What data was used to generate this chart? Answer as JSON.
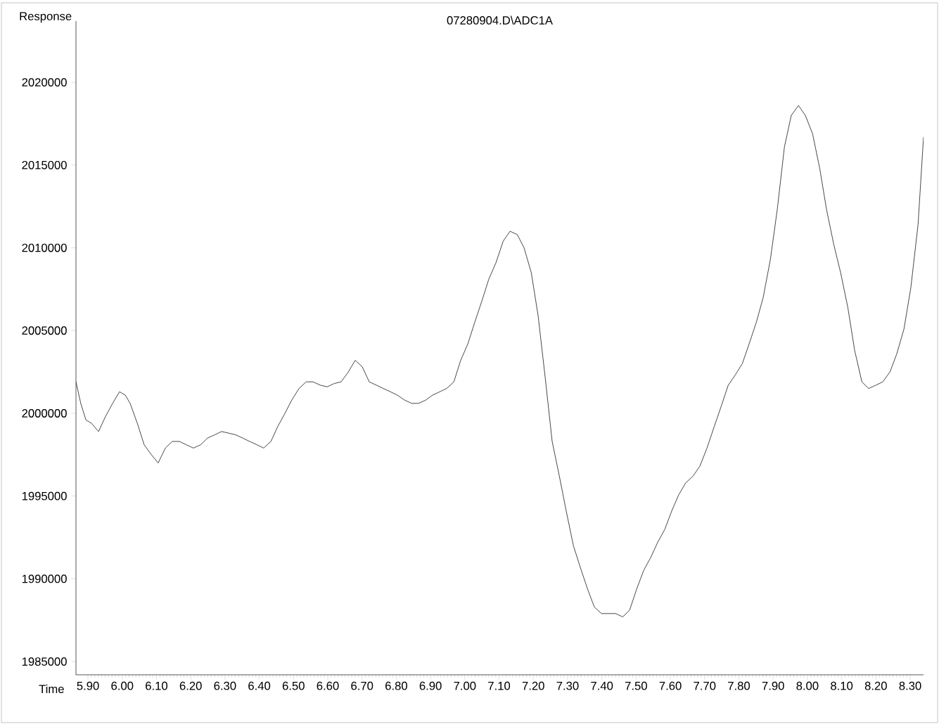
{
  "chart_data": {
    "type": "line",
    "title": "07280904.D\\ADC1A",
    "xlabel": "Time",
    "ylabel": "Response",
    "color": "#1a1a1a",
    "xlim": [
      5.865,
      8.339
    ],
    "ylim": [
      1984200,
      2023700
    ],
    "xticks": [
      {
        "value": 5.9,
        "label": "5.90"
      },
      {
        "value": 6.0,
        "label": "6.00"
      },
      {
        "value": 6.1,
        "label": "6.10"
      },
      {
        "value": 6.2,
        "label": "6.20"
      },
      {
        "value": 6.3,
        "label": "6.30"
      },
      {
        "value": 6.4,
        "label": "6.40"
      },
      {
        "value": 6.5,
        "label": "6.50"
      },
      {
        "value": 6.6,
        "label": "6.60"
      },
      {
        "value": 6.7,
        "label": "6.70"
      },
      {
        "value": 6.8,
        "label": "6.80"
      },
      {
        "value": 6.9,
        "label": "6.90"
      },
      {
        "value": 7.0,
        "label": "7.00"
      },
      {
        "value": 7.1,
        "label": "7.10"
      },
      {
        "value": 7.2,
        "label": "7.20"
      },
      {
        "value": 7.3,
        "label": "7.30"
      },
      {
        "value": 7.4,
        "label": "7.40"
      },
      {
        "value": 7.5,
        "label": "7.50"
      },
      {
        "value": 7.6,
        "label": "7.60"
      },
      {
        "value": 7.7,
        "label": "7.70"
      },
      {
        "value": 7.8,
        "label": "7.80"
      },
      {
        "value": 7.9,
        "label": "7.90"
      },
      {
        "value": 8.0,
        "label": "8.00"
      },
      {
        "value": 8.1,
        "label": "8.10"
      },
      {
        "value": 8.2,
        "label": "8.20"
      },
      {
        "value": 8.3,
        "label": "8.30"
      }
    ],
    "yticks": [
      1985000,
      1990000,
      1995000,
      2000000,
      2005000,
      2010000,
      2015000,
      2020000
    ],
    "x": [
      5.865,
      5.879,
      5.894,
      5.91,
      5.931,
      5.951,
      5.972,
      5.992,
      6.009,
      6.023,
      6.044,
      6.064,
      6.085,
      6.105,
      6.126,
      6.146,
      6.167,
      6.187,
      6.208,
      6.229,
      6.249,
      6.27,
      6.29,
      6.311,
      6.331,
      6.352,
      6.372,
      6.393,
      6.413,
      6.434,
      6.454,
      6.475,
      6.495,
      6.516,
      6.537,
      6.557,
      6.578,
      6.598,
      6.619,
      6.639,
      6.66,
      6.68,
      6.701,
      6.721,
      6.742,
      6.762,
      6.783,
      6.803,
      6.824,
      6.845,
      6.865,
      6.886,
      6.906,
      6.927,
      6.947,
      6.968,
      6.988,
      7.009,
      7.029,
      7.05,
      7.07,
      7.091,
      7.112,
      7.132,
      7.153,
      7.173,
      7.194,
      7.214,
      7.235,
      7.255,
      7.276,
      7.296,
      7.317,
      7.337,
      7.358,
      7.378,
      7.399,
      7.42,
      7.44,
      7.461,
      7.481,
      7.502,
      7.522,
      7.543,
      7.563,
      7.584,
      7.604,
      7.625,
      7.645,
      7.666,
      7.686,
      7.707,
      7.728,
      7.748,
      7.769,
      7.789,
      7.81,
      7.83,
      7.851,
      7.871,
      7.892,
      7.912,
      7.933,
      7.953,
      7.974,
      7.994,
      8.015,
      8.036,
      8.056,
      8.077,
      8.097,
      8.118,
      8.138,
      8.159,
      8.179,
      8.2,
      8.22,
      8.241,
      8.261,
      8.282,
      8.302,
      8.323,
      8.339
    ],
    "values": [
      2001900,
      2000600,
      1999600,
      1999400,
      1998900,
      1999800,
      2000600,
      2001300,
      2001100,
      2000600,
      1999400,
      1998100,
      1997500,
      1997000,
      1997900,
      1998300,
      1998300,
      1998100,
      1997900,
      1998100,
      1998500,
      1998700,
      1998900,
      1998800,
      1998700,
      1998500,
      1998300,
      1998100,
      1997900,
      1998300,
      1999200,
      2000000,
      2000800,
      2001500,
      2001900,
      2001900,
      2001700,
      2001600,
      2001800,
      2001900,
      2002500,
      2003200,
      2002800,
      2001900,
      2001700,
      2001500,
      2001300,
      2001100,
      2000800,
      2000600,
      2000600,
      2000800,
      2001100,
      2001300,
      2001500,
      2001900,
      2003200,
      2004200,
      2005500,
      2006800,
      2008100,
      2009100,
      2010400,
      2011000,
      2010800,
      2010000,
      2008500,
      2005900,
      2002100,
      1998300,
      1996200,
      1994100,
      1992000,
      1990700,
      1989400,
      1988300,
      1987900,
      1987900,
      1987900,
      1987700,
      1988100,
      1989400,
      1990500,
      1991300,
      1992200,
      1993000,
      1994100,
      1995100,
      1995800,
      1996200,
      1996800,
      1997900,
      1999200,
      2000400,
      2001700,
      2002300,
      2003000,
      2004200,
      2005500,
      2007000,
      2009300,
      2012300,
      2016100,
      2018000,
      2018600,
      2018000,
      2016900,
      2014800,
      2012300,
      2010200,
      2008500,
      2006400,
      2003800,
      2001900,
      2001500,
      2001700,
      2001900,
      2002500,
      2003600,
      2005100,
      2007600,
      2011400,
      2016700
    ]
  }
}
